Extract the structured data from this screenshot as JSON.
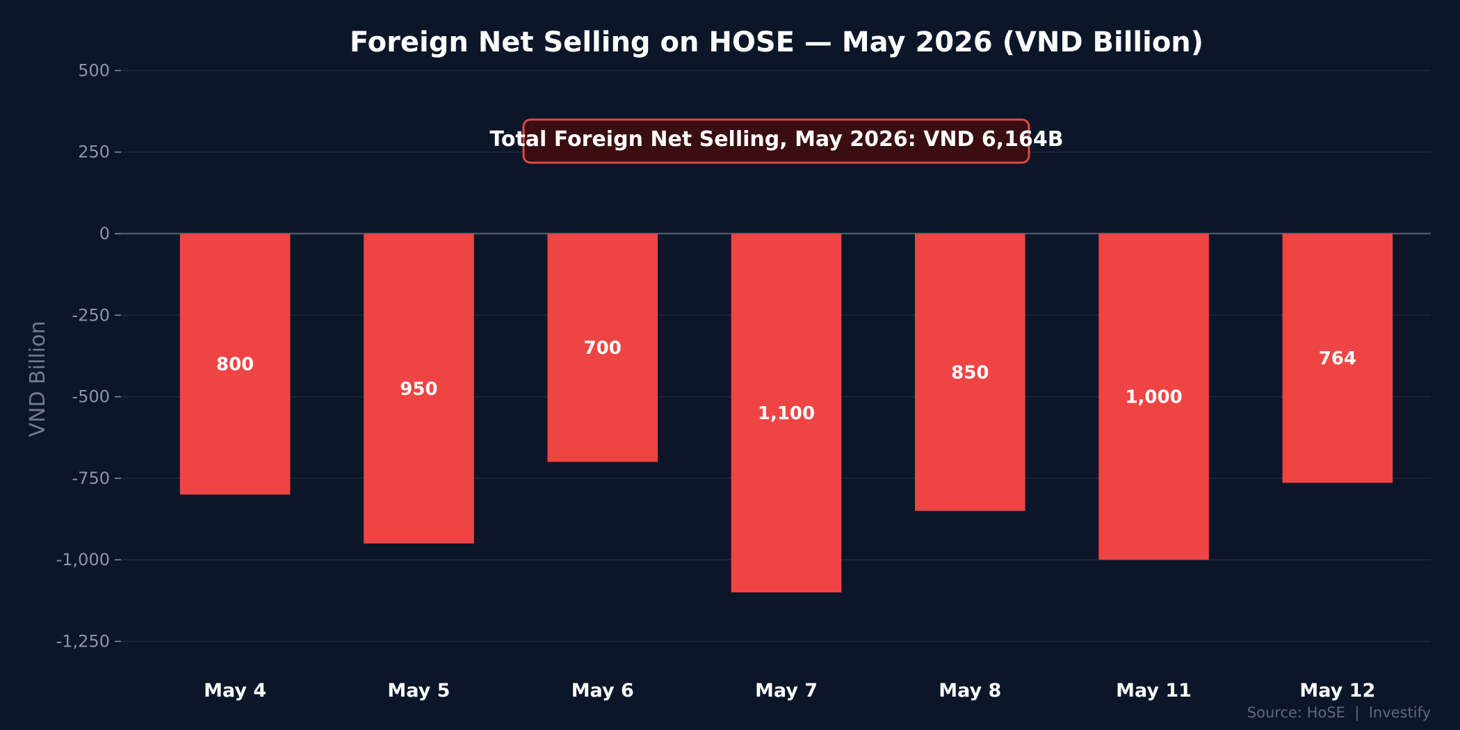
{
  "chart_data": {
    "type": "bar",
    "title": "Foreign Net Selling on HOSE — May 2026 (VND Billion)",
    "xlabel": "",
    "ylabel": "VND Billion",
    "categories": [
      "May 4",
      "May 5",
      "May 6",
      "May 7",
      "May 8",
      "May 11",
      "May 12"
    ],
    "series": [
      {
        "values": [
          -800,
          -950,
          -700,
          -1100,
          -850,
          -1000,
          -764
        ]
      }
    ],
    "data_labels": [
      "800",
      "950",
      "700",
      "1,100",
      "850",
      "1,000",
      "764"
    ],
    "ylim": [
      -1330,
      550
    ],
    "yticks": [
      500,
      250,
      0,
      -250,
      -500,
      -750,
      -1000,
      -1250
    ],
    "ytick_labels": [
      "500",
      "250",
      "0",
      "-250",
      "-500",
      "-750",
      "-1,000",
      "-1,250"
    ],
    "grid": true,
    "legend": "none",
    "annotation": "Total Foreign Net Selling, May 2026: VND 6,164B",
    "source": "Source: HoSE  |  Investify",
    "colors": {
      "bar": "#ef4444",
      "background": "#0b1628",
      "grid": "#1e2b3d",
      "zero_line": "#4a5568",
      "annotation_fill": "#3a0d12",
      "annotation_border": "#e04848"
    }
  }
}
